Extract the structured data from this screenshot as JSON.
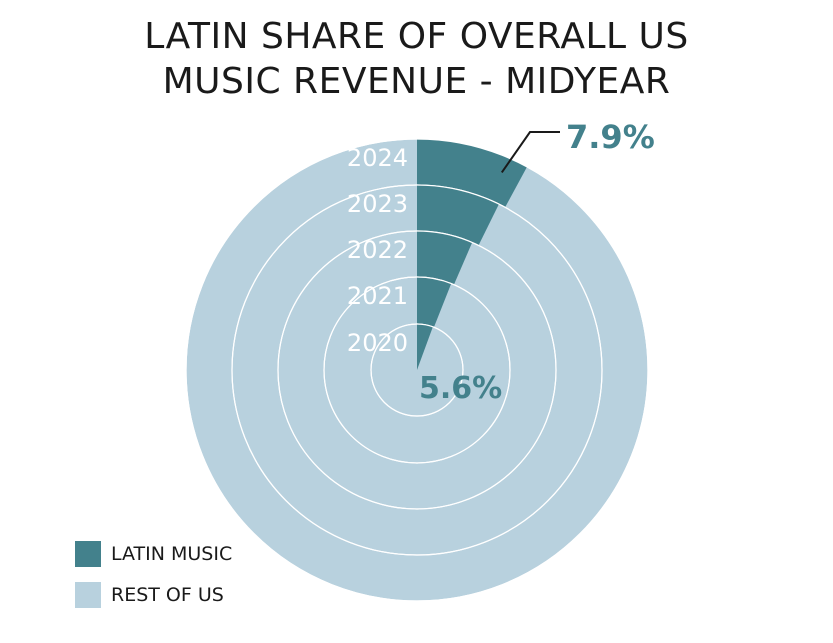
{
  "title_lines": [
    "LATIN SHARE OF OVERALL US",
    "MUSIC REVENUE - MIDYEAR"
  ],
  "colors": {
    "latin": "#43818c",
    "rest": "#b8d1de",
    "ring_border": "#ffffff",
    "year_label": "#ffffff",
    "callout": "#43818c"
  },
  "chart_data": {
    "type": "pie",
    "title": "LATIN SHARE OF OVERALL US MUSIC REVENUE - MIDYEAR",
    "subtype": "concentric-rings",
    "categories": [
      "2020",
      "2021",
      "2022",
      "2023",
      "2024"
    ],
    "series": [
      {
        "name": "LATIN MUSIC",
        "values": [
          5.6,
          6.0,
          6.5,
          7.3,
          7.9
        ]
      },
      {
        "name": "REST OF US",
        "values": [
          94.4,
          94.0,
          93.5,
          92.7,
          92.1
        ]
      }
    ],
    "annotations": [
      {
        "year": "2024",
        "text": "7.9%"
      },
      {
        "year": "2020",
        "text": "5.6%"
      }
    ],
    "legend": [
      "LATIN MUSIC",
      "REST OF US"
    ],
    "legend_position": "bottom-left"
  }
}
